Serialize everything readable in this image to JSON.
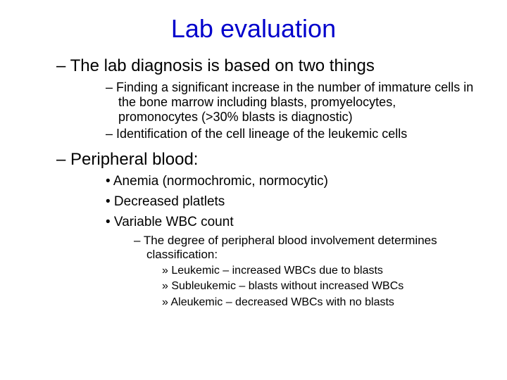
{
  "title": "Lab evaluation",
  "l1_a": "– The lab diagnosis is based on two things",
  "l2_a": "– Finding a significant increase in the number of immature cells in the bone marrow including blasts, promyelocytes, promonocytes (>30% blasts is diagnostic)",
  "l2_b": "– Identification of the cell lineage of the leukemic cells",
  "l1_b": "– Peripheral blood:",
  "bul_a": "• Anemia (normochromic, normocytic)",
  "bul_b": "• Decreased platlets",
  "bul_c": "• Variable WBC count",
  "l3_a": "– The degree of peripheral blood involvement determines classification:",
  "l4_a": "» Leukemic – increased WBCs due to blasts",
  "l4_b": "» Subleukemic – blasts without increased WBCs",
  "l4_c": "» Aleukemic – decreased WBCs with no blasts"
}
